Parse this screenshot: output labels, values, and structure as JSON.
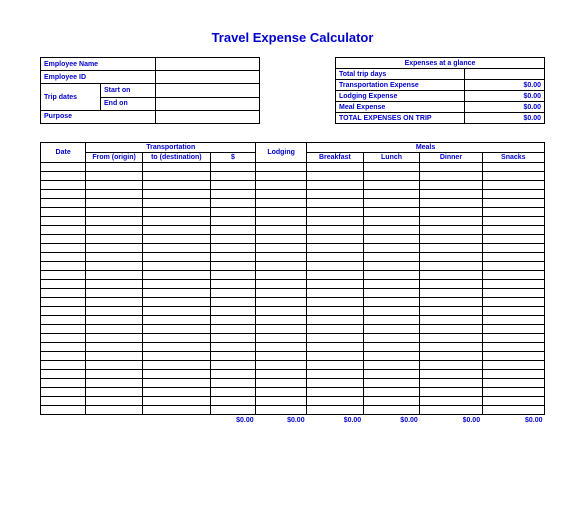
{
  "title": "Travel Expense Calculator",
  "employee": {
    "name_label": "Employee Name",
    "id_label": "Employee ID",
    "dates_label": "Trip dates",
    "start_label": "Start on",
    "end_label": "End on",
    "purpose_label": "Purpose"
  },
  "glance": {
    "header": "Expenses at a glance",
    "rows": [
      {
        "label": "Total trip days",
        "value": ""
      },
      {
        "label": "Transportation Expense",
        "value": "$0.00"
      },
      {
        "label": "Lodging Expense",
        "value": "$0.00"
      },
      {
        "label": "Meal Expense",
        "value": "$0.00"
      },
      {
        "label": "TOTAL EXPENSES ON TRIP",
        "value": "$0.00"
      }
    ]
  },
  "grid": {
    "headers": {
      "date": "Date",
      "transportation": "Transportation",
      "from": "From (origin)",
      "to": "to (destination)",
      "tdollar": "$",
      "lodging": "Lodging",
      "meals": "Meals",
      "breakfast": "Breakfast",
      "lunch": "Lunch",
      "dinner": "Dinner",
      "snacks": "Snacks"
    },
    "row_count": 28,
    "totals": {
      "transport": "$0.00",
      "lodging": "$0.00",
      "breakfast": "$0.00",
      "lunch": "$0.00",
      "dinner": "$0.00",
      "snacks": "$0.00"
    }
  },
  "colors": {
    "accent": "#0000cc",
    "border": "#000000",
    "background": "#ffffff"
  }
}
